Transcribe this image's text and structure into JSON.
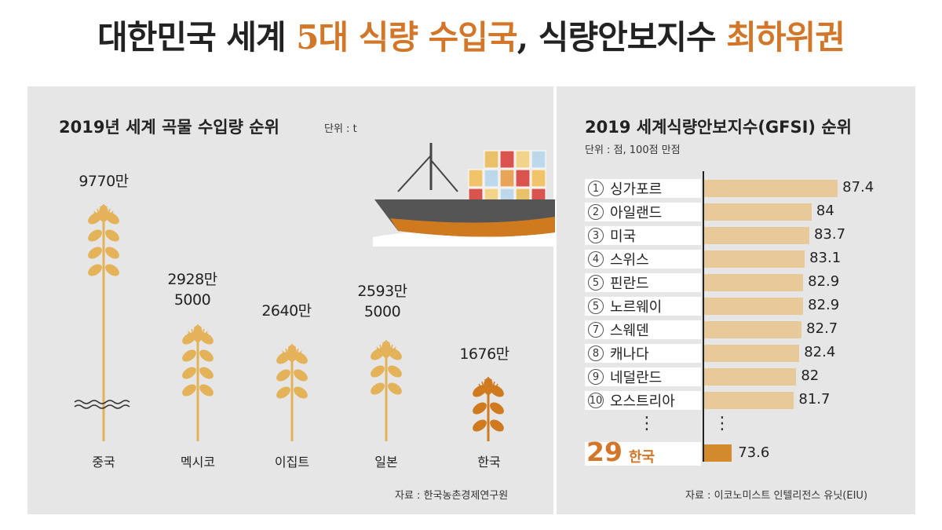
{
  "headline": {
    "part1": "대한민국 세계 ",
    "part2": "5대 식량 수입국",
    "part3": ",  식량안보지수 ",
    "part4": "최하위권"
  },
  "left_panel": {
    "title": "2019년 세계 곡물 수입량 순위",
    "unit": "단위 : t",
    "source": "자료 : 한국농촌경제연구원"
  },
  "right_panel": {
    "title": "2019 세계식량안보지수(GFSI) 순위",
    "unit": "단위 : 점, 100점 만점",
    "source": "자료 : 이코노미스트 인텔리전스 유닛(EIU)",
    "dots": "⋮"
  },
  "colors": {
    "accent": "#d2772a",
    "bar": "#e8c99a",
    "korea_bar": "#d38a2c",
    "wheat_gold": "#e3b259",
    "wheat_orange": "#d07a1f"
  },
  "chart_data": [
    {
      "type": "bar",
      "title": "2019년 세계 곡물 수입량 순위",
      "unit": "단위 : t",
      "categories": [
        "중국",
        "멕시코",
        "이집트",
        "일본",
        "한국"
      ],
      "value_labels": [
        [
          "9770만"
        ],
        [
          "2928만",
          "5000"
        ],
        [
          "2640만"
        ],
        [
          "2593만",
          "5000"
        ],
        [
          "1676만"
        ]
      ],
      "values": [
        97700000,
        29285000,
        26400000,
        25935000,
        16760000
      ]
    },
    {
      "type": "bar",
      "title": "2019 세계식량안보지수(GFSI) 순위",
      "unit": "단위 : 점, 100점 만점",
      "rows": [
        {
          "rank": "1",
          "country": "싱가포르",
          "value": 87.4
        },
        {
          "rank": "2",
          "country": "아일랜드",
          "value": 84
        },
        {
          "rank": "3",
          "country": "미국",
          "value": 83.7
        },
        {
          "rank": "4",
          "country": "스위스",
          "value": 83.1
        },
        {
          "rank": "5",
          "country": "핀란드",
          "value": 82.9
        },
        {
          "rank": "5",
          "country": "노르웨이",
          "value": 82.9
        },
        {
          "rank": "7",
          "country": "스웨덴",
          "value": 82.7
        },
        {
          "rank": "8",
          "country": "캐나다",
          "value": 82.4
        },
        {
          "rank": "9",
          "country": "네덜란드",
          "value": 82
        },
        {
          "rank": "10",
          "country": "오스트리아",
          "value": 81.7
        }
      ],
      "highlight": {
        "rank": "29",
        "country": "한국",
        "value": 73.6
      }
    }
  ]
}
